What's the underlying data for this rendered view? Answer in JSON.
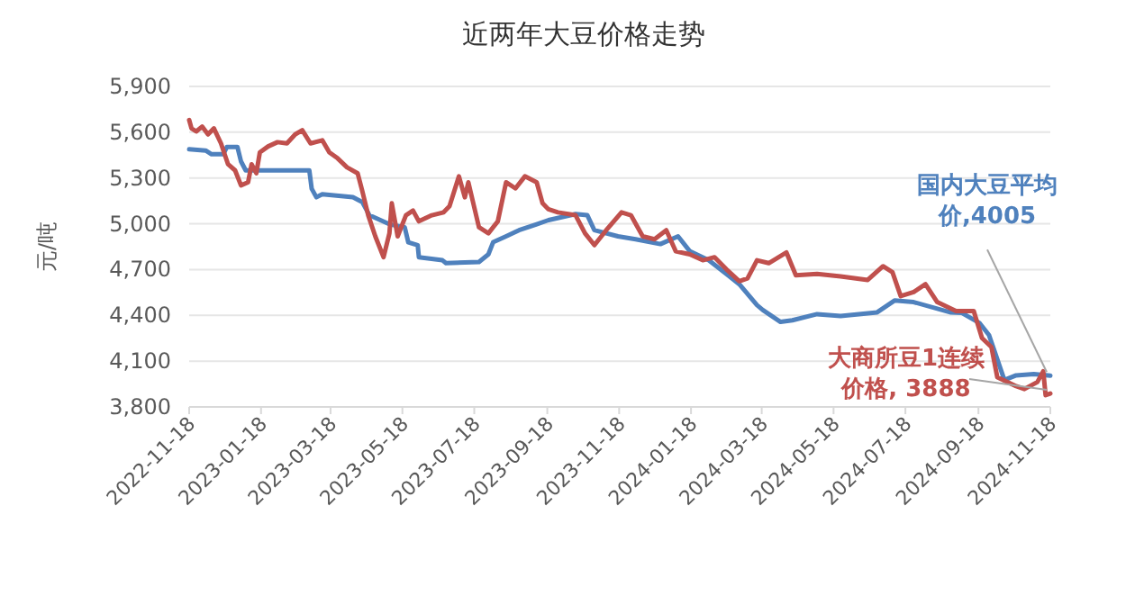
{
  "chart_data": {
    "type": "line",
    "title": "近两年大豆价格走势",
    "ylabel": "元/吨",
    "xlim": [
      "2022-11-18",
      "2024-11-18"
    ],
    "xticks": [
      "2022-11-18",
      "2023-01-18",
      "2023-03-18",
      "2023-05-18",
      "2023-07-18",
      "2023-09-18",
      "2023-11-18",
      "2024-01-18",
      "2024-03-18",
      "2024-05-18",
      "2024-07-18",
      "2024-09-18",
      "2024-11-18"
    ],
    "ylim": [
      3800,
      5900
    ],
    "yticks": [
      {
        "value": 3800,
        "label": "3,800"
      },
      {
        "value": 4100,
        "label": "4,100"
      },
      {
        "value": 4400,
        "label": "4,400"
      },
      {
        "value": 4700,
        "label": "4,700"
      },
      {
        "value": 5000,
        "label": "5,000"
      },
      {
        "value": 5300,
        "label": "5,300"
      },
      {
        "value": 5600,
        "label": "5,600"
      },
      {
        "value": 5900,
        "label": "5,900"
      }
    ],
    "grid": "y",
    "legend": false,
    "series": [
      {
        "name": "国内大豆平均价,4005",
        "color": "#4f81bd",
        "x": [
          "2022-11-18",
          "2022-12-02",
          "2022-12-07",
          "2022-12-17",
          "2022-12-20",
          "2022-12-29",
          "2023-01-01",
          "2023-01-05",
          "2023-02-28",
          "2023-03-02",
          "2023-03-06",
          "2023-03-11",
          "2023-04-06",
          "2023-04-14",
          "2023-04-20",
          "2023-05-07",
          "2023-05-20",
          "2023-05-23",
          "2023-05-31",
          "2023-06-01",
          "2023-06-21",
          "2023-06-24",
          "2023-07-22",
          "2023-07-30",
          "2023-08-03",
          "2023-08-14",
          "2023-08-25",
          "2023-09-09",
          "2023-09-19",
          "2023-10-12",
          "2023-10-22",
          "2023-10-28",
          "2023-11-17",
          "2023-12-02",
          "2023-12-23",
          "2024-01-07",
          "2024-01-17",
          "2024-02-02",
          "2024-02-17",
          "2024-02-28",
          "2024-03-14",
          "2024-03-19",
          "2024-04-03",
          "2024-04-13",
          "2024-05-04",
          "2024-05-24",
          "2024-06-24",
          "2024-07-09",
          "2024-07-25",
          "2024-08-25",
          "2024-09-04",
          "2024-09-19",
          "2024-09-27",
          "2024-10-10",
          "2024-10-20",
          "2024-11-04",
          "2024-11-18"
        ],
        "values": [
          5488,
          5480,
          5456,
          5456,
          5503,
          5503,
          5409,
          5350,
          5350,
          5230,
          5174,
          5193,
          5174,
          5142,
          5056,
          4997,
          4977,
          4879,
          4860,
          4781,
          4761,
          4742,
          4750,
          4800,
          4879,
          4918,
          4958,
          4997,
          5024,
          5064,
          5056,
          4958,
          4918,
          4899,
          4867,
          4918,
          4820,
          4761,
          4671,
          4604,
          4467,
          4435,
          4357,
          4368,
          4408,
          4396,
          4420,
          4498,
          4487,
          4420,
          4416,
          4349,
          4270,
          3976,
          4007,
          4015,
          4005
        ]
      },
      {
        "name": "大商所豆1连续价格, 3888",
        "color": "#c0504d",
        "x": [
          "2022-11-18",
          "2022-11-20",
          "2022-11-24",
          "2022-11-29",
          "2022-12-04",
          "2022-12-09",
          "2022-12-15",
          "2022-12-21",
          "2022-12-27",
          "2023-01-01",
          "2023-01-07",
          "2023-01-10",
          "2023-01-14",
          "2023-01-17",
          "2023-01-24",
          "2023-02-01",
          "2023-02-09",
          "2023-02-16",
          "2023-02-22",
          "2023-03-01",
          "2023-03-11",
          "2023-03-17",
          "2023-03-24",
          "2023-04-01",
          "2023-04-10",
          "2023-04-14",
          "2023-04-19",
          "2023-04-25",
          "2023-05-02",
          "2023-05-07",
          "2023-05-09",
          "2023-05-14",
          "2023-05-21",
          "2023-05-27",
          "2023-06-01",
          "2023-06-12",
          "2023-06-22",
          "2023-06-27",
          "2023-07-05",
          "2023-07-10",
          "2023-07-13",
          "2023-07-22",
          "2023-07-30",
          "2023-08-07",
          "2023-08-14",
          "2023-08-22",
          "2023-08-30",
          "2023-09-09",
          "2023-09-14",
          "2023-09-19",
          "2023-09-27",
          "2023-10-12",
          "2023-10-20",
          "2023-10-28",
          "2023-11-07",
          "2023-11-20",
          "2023-11-28",
          "2023-12-08",
          "2023-12-18",
          "2023-12-28",
          "2024-01-05",
          "2024-01-17",
          "2024-01-28",
          "2024-02-07",
          "2024-02-17",
          "2024-02-28",
          "2024-03-06",
          "2024-03-14",
          "2024-03-24",
          "2024-04-08",
          "2024-04-16",
          "2024-05-04",
          "2024-05-24",
          "2024-06-16",
          "2024-06-29",
          "2024-07-07",
          "2024-07-14",
          "2024-07-25",
          "2024-08-04",
          "2024-08-14",
          "2024-08-30",
          "2024-09-14",
          "2024-09-21",
          "2024-09-29",
          "2024-10-04",
          "2024-10-20",
          "2024-10-27",
          "2024-11-07",
          "2024-11-12",
          "2024-11-14",
          "2024-11-18"
        ],
        "values": [
          5680,
          5625,
          5605,
          5637,
          5586,
          5625,
          5527,
          5390,
          5350,
          5252,
          5272,
          5390,
          5331,
          5468,
          5507,
          5535,
          5527,
          5586,
          5613,
          5527,
          5547,
          5468,
          5429,
          5370,
          5331,
          5213,
          5056,
          4918,
          4781,
          4938,
          5134,
          4918,
          5056,
          5087,
          5016,
          5056,
          5075,
          5115,
          5311,
          5174,
          5272,
          4977,
          4938,
          5016,
          5272,
          5232,
          5311,
          5272,
          5134,
          5095,
          5075,
          5056,
          4938,
          4860,
          4958,
          5075,
          5056,
          4918,
          4899,
          4958,
          4820,
          4800,
          4761,
          4781,
          4702,
          4624,
          4643,
          4761,
          4742,
          4812,
          4663,
          4671,
          4655,
          4632,
          4722,
          4683,
          4526,
          4553,
          4604,
          4487,
          4428,
          4428,
          4251,
          4192,
          3995,
          3936,
          3917,
          3963,
          4034,
          3877,
          3888
        ]
      }
    ]
  }
}
